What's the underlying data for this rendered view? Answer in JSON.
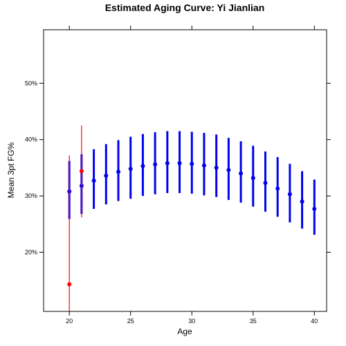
{
  "chart_data": {
    "type": "errorbar",
    "title": "Estimated Aging Curve: Yi Jianlian",
    "xlabel": "Age",
    "ylabel": "Mean 3pt FG%",
    "xlim": [
      17.9,
      41.0
    ],
    "ylim": [
      0.095,
      0.595
    ],
    "x_ticks": [
      20,
      25,
      30,
      35,
      40
    ],
    "y_ticks": [
      0.2,
      0.3,
      0.4,
      0.5
    ],
    "x_tick_labels": [
      "20",
      "25",
      "30",
      "35",
      "40"
    ],
    "y_tick_labels": [
      "20%",
      "30%",
      "40%",
      "50%"
    ],
    "grid": false,
    "series": [
      {
        "color": "#0000ee",
        "points": [
          {
            "x": 20,
            "y": 0.308,
            "low": 0.259,
            "high": 0.362
          },
          {
            "x": 21,
            "y": 0.318,
            "low": 0.268,
            "high": 0.374
          },
          {
            "x": 22,
            "y": 0.327,
            "low": 0.277,
            "high": 0.383
          },
          {
            "x": 23,
            "y": 0.336,
            "low": 0.285,
            "high": 0.392
          },
          {
            "x": 24,
            "y": 0.343,
            "low": 0.291,
            "high": 0.399
          },
          {
            "x": 25,
            "y": 0.348,
            "low": 0.295,
            "high": 0.405
          },
          {
            "x": 26,
            "y": 0.353,
            "low": 0.3,
            "high": 0.41
          },
          {
            "x": 27,
            "y": 0.356,
            "low": 0.303,
            "high": 0.413
          },
          {
            "x": 28,
            "y": 0.358,
            "low": 0.305,
            "high": 0.415
          },
          {
            "x": 29,
            "y": 0.358,
            "low": 0.305,
            "high": 0.415
          },
          {
            "x": 30,
            "y": 0.357,
            "low": 0.304,
            "high": 0.414
          },
          {
            "x": 31,
            "y": 0.354,
            "low": 0.301,
            "high": 0.412
          },
          {
            "x": 32,
            "y": 0.35,
            "low": 0.298,
            "high": 0.409
          },
          {
            "x": 33,
            "y": 0.346,
            "low": 0.293,
            "high": 0.403
          },
          {
            "x": 34,
            "y": 0.34,
            "low": 0.288,
            "high": 0.397
          },
          {
            "x": 35,
            "y": 0.332,
            "low": 0.281,
            "high": 0.389
          },
          {
            "x": 36,
            "y": 0.323,
            "low": 0.272,
            "high": 0.379
          },
          {
            "x": 37,
            "y": 0.313,
            "low": 0.263,
            "high": 0.369
          },
          {
            "x": 38,
            "y": 0.303,
            "low": 0.253,
            "high": 0.357
          },
          {
            "x": 39,
            "y": 0.29,
            "low": 0.242,
            "high": 0.344
          },
          {
            "x": 40,
            "y": 0.277,
            "low": 0.231,
            "high": 0.329
          }
        ]
      },
      {
        "color": "#ff0000",
        "points": [
          {
            "x": 20,
            "y": 0.143,
            "low": 0.095,
            "high": 0.372
          },
          {
            "x": 21,
            "y": 0.344,
            "low": 0.262,
            "high": 0.425
          }
        ]
      }
    ]
  }
}
